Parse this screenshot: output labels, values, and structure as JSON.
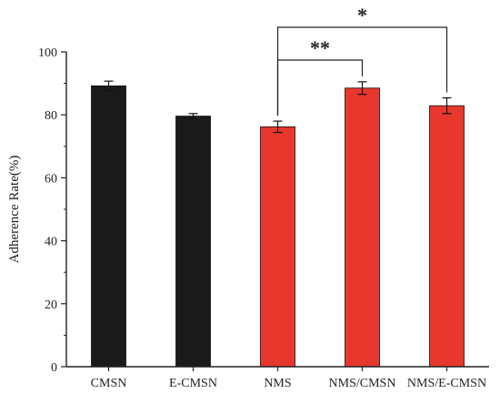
{
  "chart_data": {
    "type": "bar",
    "title": "",
    "xlabel": "",
    "ylabel": "Adherence Rate(%)",
    "ylim": [
      0,
      100
    ],
    "yticks": [
      0,
      20,
      40,
      60,
      80,
      100
    ],
    "categories": [
      "CMSN",
      "E-CMSN",
      "NMS",
      "NMS/CMSN",
      "NMS/E-CMSN"
    ],
    "values": [
      89.2,
      79.6,
      76.2,
      88.5,
      82.9
    ],
    "errors": [
      1.5,
      0.8,
      1.8,
      2.0,
      2.5
    ],
    "colors": [
      "#1a1a1a",
      "#1a1a1a",
      "#e8382e",
      "#e8382e",
      "#e8382e"
    ],
    "significance": [
      {
        "from": "NMS",
        "to": "NMS/CMSN",
        "label": "**"
      },
      {
        "from": "NMS",
        "to": "NMS/E-CMSN",
        "label": "*"
      }
    ],
    "grid": false,
    "legend": "none"
  }
}
